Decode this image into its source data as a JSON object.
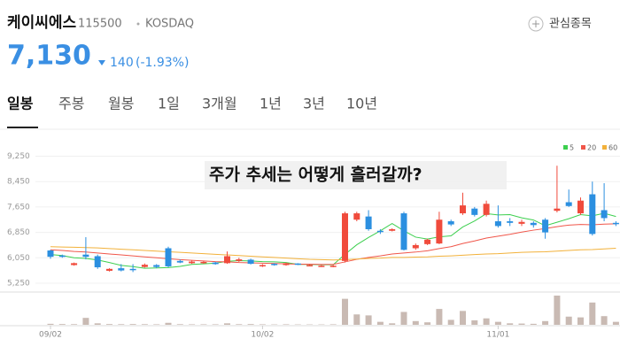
{
  "header": {
    "name": "케이씨에스",
    "code": "115500",
    "market": "KOSDAQ",
    "watch_button": "관심종목",
    "price": "7,130",
    "change": "140",
    "change_pct": "(-1.93%)"
  },
  "tabs": [
    "일봉",
    "주봉",
    "월봉",
    "1일",
    "3개월",
    "1년",
    "3년",
    "10년"
  ],
  "overlay_text": "주가 추세는 어떻게 흘러갈까?",
  "chart_data": {
    "type": "candlestick",
    "categories": [
      "09/02",
      null,
      null,
      null,
      null,
      null,
      null,
      null,
      null,
      null,
      null,
      null,
      null,
      null,
      null,
      null,
      null,
      null,
      "10/02",
      null,
      null,
      null,
      null,
      null,
      null,
      null,
      null,
      null,
      null,
      null,
      null,
      null,
      null,
      null,
      null,
      null,
      null,
      null,
      "11/01",
      null,
      null,
      null,
      null,
      null,
      null,
      null,
      null,
      null,
      null
    ],
    "open": [
      6280,
      6120,
      5820,
      6150,
      6100,
      5640,
      5720,
      5700,
      5760,
      5820,
      6350,
      5950,
      5880,
      5890,
      5900,
      5880,
      5950,
      5990,
      5780,
      5860,
      5820,
      5870,
      5800,
      5780,
      5770,
      5950,
      7250,
      7350,
      6900,
      6900,
      7450,
      6350,
      6480,
      6500,
      7200,
      7450,
      7600,
      7400,
      7200,
      7200,
      7120,
      7150,
      7250,
      7530,
      7800,
      7450,
      8050,
      7550,
      7150
    ],
    "high": [
      6300,
      6150,
      5900,
      6700,
      6150,
      5720,
      5850,
      5850,
      5870,
      5850,
      6400,
      6000,
      5960,
      5950,
      5920,
      6250,
      6050,
      6020,
      5850,
      5880,
      5900,
      5880,
      5850,
      5820,
      5820,
      7500,
      7500,
      7550,
      6950,
      6980,
      7500,
      6500,
      6650,
      7500,
      7250,
      8100,
      7650,
      7850,
      7700,
      7300,
      7250,
      7200,
      7300,
      8950,
      8200,
      7950,
      8450,
      8400,
      7200
    ],
    "low": [
      6020,
      6050,
      5800,
      6000,
      5700,
      5620,
      5620,
      5600,
      5740,
      5720,
      5750,
      5880,
      5860,
      5860,
      5830,
      5860,
      5920,
      5840,
      5760,
      5800,
      5800,
      5820,
      5780,
      5760,
      5750,
      5900,
      7200,
      6900,
      6800,
      6880,
      6280,
      6300,
      6450,
      6480,
      7050,
      7400,
      7350,
      7350,
      7000,
      7050,
      7050,
      7000,
      6650,
      7480,
      7650,
      7400,
      6750,
      7200,
      7050
    ],
    "close": [
      6080,
      6080,
      5880,
      6080,
      5750,
      5700,
      5650,
      5660,
      5830,
      5760,
      5780,
      5900,
      5930,
      5920,
      5850,
      6100,
      6000,
      5860,
      5820,
      5820,
      5880,
      5840,
      5820,
      5800,
      5800,
      7450,
      7450,
      6950,
      6870,
      6950,
      6300,
      6450,
      6620,
      7250,
      7100,
      7700,
      7400,
      7750,
      7050,
      7150,
      7180,
      7080,
      6850,
      7600,
      7680,
      7850,
      6800,
      7300,
      7130
    ],
    "volume": [
      40000,
      30000,
      25000,
      280000,
      60000,
      30000,
      25000,
      30000,
      25000,
      20000,
      80000,
      25000,
      20000,
      20000,
      20000,
      60000,
      25000,
      30000,
      20000,
      15000,
      20000,
      15000,
      15000,
      15000,
      20000,
      1050000,
      420000,
      380000,
      120000,
      60000,
      520000,
      150000,
      100000,
      640000,
      200000,
      560000,
      180000,
      260000,
      120000,
      60000,
      50000,
      40000,
      150000,
      1180000,
      330000,
      300000,
      900000,
      350000,
      120000
    ],
    "moving_averages": [
      {
        "name": "5",
        "color": "#3ccf4e",
        "values": [
          6150,
          6120,
          6050,
          6030,
          5980,
          5900,
          5810,
          5770,
          5720,
          5730,
          5740,
          5780,
          5840,
          5860,
          5880,
          5940,
          5960,
          5950,
          5930,
          5920,
          5900,
          5840,
          5840,
          5830,
          5830,
          6160,
          6460,
          6690,
          6900,
          7130,
          6900,
          6700,
          6640,
          6710,
          6740,
          7020,
          7210,
          7440,
          7400,
          7410,
          7310,
          7240,
          7060,
          7170,
          7280,
          7410,
          7370,
          7450,
          7350
        ]
      },
      {
        "name": "20",
        "color": "#f0564a",
        "values": [
          6300,
          6280,
          6250,
          6230,
          6200,
          6170,
          6140,
          6110,
          6080,
          6050,
          6020,
          5990,
          5970,
          5950,
          5930,
          5920,
          5900,
          5890,
          5880,
          5870,
          5860,
          5850,
          5850,
          5840,
          5840,
          5920,
          6000,
          6060,
          6110,
          6170,
          6200,
          6230,
          6270,
          6340,
          6400,
          6500,
          6580,
          6670,
          6730,
          6790,
          6860,
          6920,
          6970,
          7030,
          7080,
          7100,
          7090,
          7110,
          7120
        ]
      },
      {
        "name": "60",
        "color": "#f2b13a",
        "values": [
          6400,
          6390,
          6380,
          6370,
          6360,
          6340,
          6320,
          6300,
          6280,
          6260,
          6240,
          6220,
          6200,
          6180,
          6160,
          6140,
          6120,
          6100,
          6080,
          6060,
          6040,
          6020,
          6000,
          5990,
          5980,
          5990,
          6010,
          6030,
          6040,
          6060,
          6060,
          6070,
          6080,
          6100,
          6110,
          6130,
          6150,
          6170,
          6180,
          6200,
          6220,
          6230,
          6240,
          6260,
          6280,
          6300,
          6310,
          6330,
          6350
        ]
      }
    ],
    "up_color": "#f04b3c",
    "down_color": "#2b8fe0",
    "volume_color": "#c9bab3",
    "ylim": [
      4970,
      9710
    ],
    "yticks": [
      {
        "value": 9250,
        "label": "9,250"
      },
      {
        "value": 8450,
        "label": "8,450"
      },
      {
        "value": 7650,
        "label": "7,650"
      },
      {
        "value": 6850,
        "label": "6,850"
      },
      {
        "value": 6050,
        "label": "6,050"
      },
      {
        "value": 5250,
        "label": "5,250"
      }
    ],
    "grid": true
  }
}
